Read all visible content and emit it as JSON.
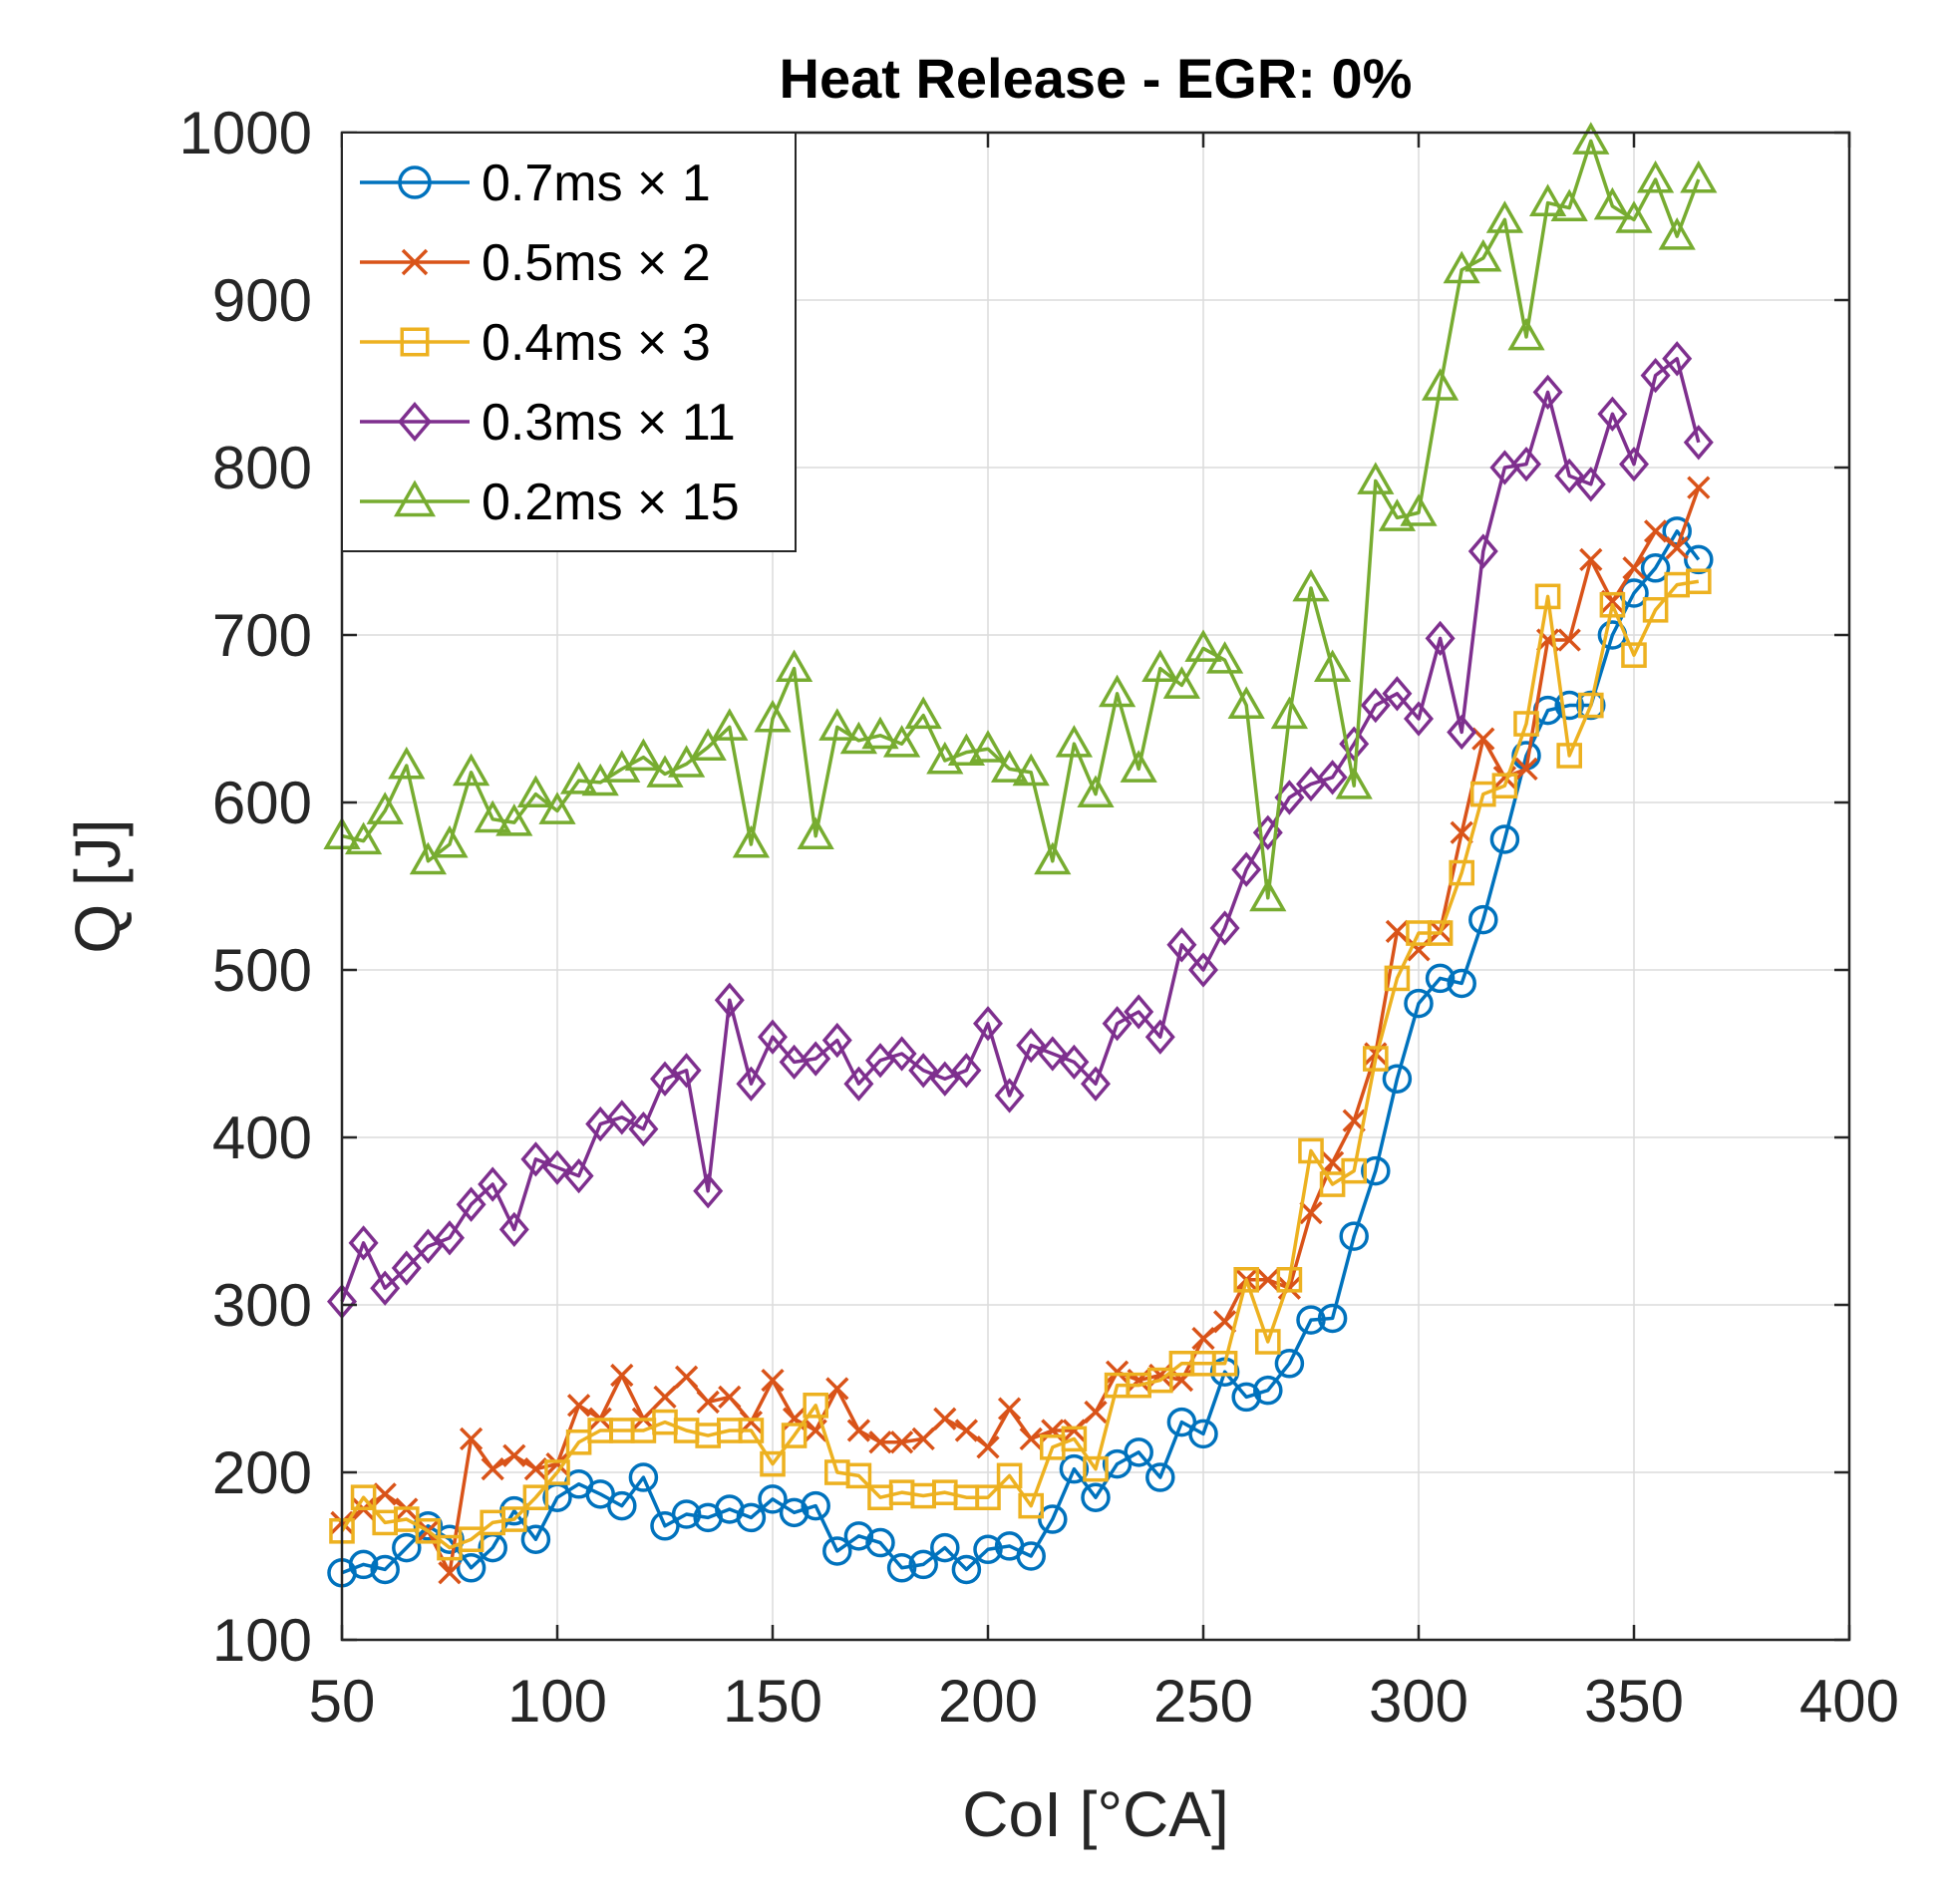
{
  "chart_data": {
    "type": "line",
    "title": "Heat Release - EGR: 0%",
    "xlabel": "CoI [°CA]",
    "ylabel": "Q [J]",
    "xlim": [
      50,
      400
    ],
    "ylim": [
      100,
      1000
    ],
    "xticks": [
      50,
      100,
      150,
      200,
      250,
      300,
      350,
      400
    ],
    "yticks": [
      100,
      200,
      300,
      400,
      500,
      600,
      700,
      800,
      900,
      1000
    ],
    "grid": true,
    "legend_position": "top-left",
    "x": [
      50,
      55,
      60,
      65,
      70,
      75,
      80,
      85,
      90,
      95,
      100,
      105,
      110,
      115,
      120,
      125,
      130,
      135,
      140,
      145,
      150,
      155,
      160,
      165,
      170,
      175,
      180,
      185,
      190,
      195,
      200,
      205,
      210,
      215,
      220,
      225,
      230,
      235,
      240,
      245,
      250,
      255,
      260,
      265,
      270,
      275,
      280,
      285,
      290,
      295,
      300,
      305,
      310,
      315,
      320,
      325,
      330,
      335,
      340,
      345,
      350,
      355,
      360,
      365
    ],
    "series": [
      {
        "name": "0.7ms × 1",
        "color": "#0072BD",
        "marker": "circle",
        "values": [
          140,
          145,
          142,
          155,
          168,
          160,
          143,
          155,
          177,
          160,
          185,
          193,
          187,
          180,
          197,
          168,
          175,
          173,
          178,
          173,
          184,
          176,
          180,
          153,
          162,
          158,
          143,
          145,
          155,
          142,
          154,
          156,
          150,
          172,
          202,
          185,
          205,
          212,
          197,
          230,
          223,
          260,
          245,
          249,
          265,
          291,
          292,
          341,
          380,
          435,
          480,
          495,
          492,
          530,
          578,
          628,
          655,
          658,
          658,
          700,
          725,
          740,
          762,
          745
        ]
      },
      {
        "name": "0.5ms × 2",
        "color": "#D95319",
        "marker": "x",
        "values": [
          170,
          178,
          187,
          178,
          165,
          140,
          220,
          202,
          210,
          202,
          205,
          240,
          232,
          258,
          232,
          245,
          257,
          242,
          245,
          230,
          255,
          232,
          225,
          250,
          225,
          218,
          218,
          220,
          232,
          225,
          215,
          238,
          220,
          225,
          225,
          236,
          260,
          255,
          258,
          255,
          280,
          290,
          315,
          315,
          310,
          355,
          385,
          410,
          450,
          523,
          512,
          523,
          582,
          638,
          615,
          620,
          697,
          697,
          745,
          720,
          740,
          762,
          752,
          788
        ]
      },
      {
        "name": "0.4ms × 3",
        "color": "#EDB120",
        "marker": "square",
        "values": [
          165,
          185,
          170,
          172,
          165,
          155,
          160,
          170,
          172,
          185,
          200,
          218,
          225,
          225,
          225,
          230,
          225,
          222,
          225,
          225,
          205,
          222,
          240,
          200,
          198,
          185,
          188,
          186,
          188,
          185,
          185,
          198,
          180,
          215,
          220,
          202,
          252,
          252,
          255,
          265,
          265,
          265,
          315,
          278,
          315,
          392,
          372,
          380,
          447,
          495,
          522,
          522,
          558,
          605,
          610,
          647,
          723,
          628,
          658,
          718,
          688,
          715,
          730,
          732
        ]
      },
      {
        "name": "0.3ms × 11",
        "color": "#7E2F8E",
        "marker": "diamond",
        "values": [
          302,
          337,
          310,
          322,
          335,
          340,
          360,
          372,
          345,
          387,
          382,
          377,
          408,
          412,
          405,
          435,
          440,
          368,
          482,
          432,
          460,
          445,
          447,
          458,
          432,
          446,
          450,
          440,
          435,
          440,
          468,
          425,
          455,
          450,
          445,
          432,
          468,
          475,
          460,
          515,
          500,
          525,
          560,
          582,
          603,
          611,
          615,
          635,
          658,
          665,
          650,
          698,
          642,
          750,
          800,
          802,
          845,
          795,
          790,
          832,
          802,
          855,
          865,
          815
        ]
      },
      {
        "name": "0.2ms × 15",
        "color": "#77AC30",
        "marker": "triangle",
        "values": [
          580,
          577,
          595,
          622,
          565,
          575,
          618,
          590,
          588,
          605,
          595,
          613,
          612,
          620,
          627,
          617,
          623,
          633,
          645,
          575,
          650,
          680,
          580,
          645,
          637,
          640,
          635,
          652,
          625,
          630,
          632,
          620,
          618,
          565,
          635,
          605,
          665,
          620,
          680,
          670,
          692,
          685,
          658,
          543,
          652,
          728,
          680,
          610,
          792,
          770,
          773,
          848,
          918,
          925,
          948,
          878,
          958,
          955,
          995,
          956,
          948,
          972,
          938,
          972
        ]
      }
    ]
  }
}
